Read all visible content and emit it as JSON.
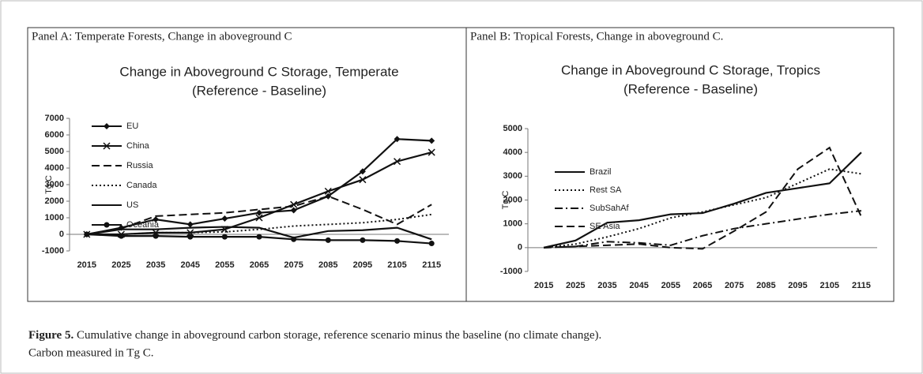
{
  "panels": [
    "Panel A: Temperate Forests, Change in aboveground C",
    "Panel B: Tropical Forests, Change in aboveground C."
  ],
  "caption": {
    "label": "Figure 5.",
    "text": "Cumulative change in aboveground carbon storage, reference scenario minus the baseline (no climate change). Carbon measured in Tg C."
  },
  "chart_data": [
    {
      "type": "line",
      "title": "Change in Aboveground C Storage, Temperate",
      "subtitle": "(Reference - Baseline)",
      "y_label": "Tg C",
      "categories": [
        "2015",
        "2025",
        "2035",
        "2045",
        "2055",
        "2065",
        "2075",
        "2085",
        "2095",
        "2105",
        "2115"
      ],
      "ylim": [
        -1000,
        7000
      ],
      "yticks": [
        -1000,
        0,
        1000,
        2000,
        3000,
        4000,
        5000,
        6000,
        7000
      ],
      "series": [
        {
          "name": "EU",
          "color": "#111111",
          "style": "solid",
          "marker": "diamond",
          "values": [
            0,
            400,
            900,
            600,
            950,
            1300,
            1450,
            2300,
            3800,
            5750,
            5650
          ]
        },
        {
          "name": "China",
          "color": "#111111",
          "style": "solid",
          "marker": "x",
          "values": [
            0,
            0,
            100,
            100,
            300,
            1000,
            1800,
            2600,
            3300,
            4400,
            4950
          ]
        },
        {
          "name": "Russia",
          "color": "#111111",
          "style": "dashed",
          "marker": "none",
          "values": [
            0,
            350,
            1100,
            1200,
            1300,
            1500,
            1700,
            2300,
            1500,
            600,
            1800
          ]
        },
        {
          "name": "Canada",
          "color": "#111111",
          "style": "dotted",
          "marker": "none",
          "values": [
            0,
            0,
            100,
            100,
            150,
            300,
            500,
            600,
            700,
            900,
            1200
          ]
        },
        {
          "name": "US",
          "color": "#111111",
          "style": "solid",
          "marker": "none",
          "values": [
            0,
            300,
            300,
            400,
            450,
            400,
            -200,
            200,
            250,
            400,
            -300
          ]
        },
        {
          "name": "Oceania",
          "color": "#111111",
          "style": "solid",
          "marker": "circle",
          "values": [
            0,
            -100,
            -100,
            -150,
            -150,
            -150,
            -300,
            -350,
            -350,
            -400,
            -550
          ]
        }
      ]
    },
    {
      "type": "line",
      "title": "Change in Aboveground C Storage, Tropics",
      "subtitle": "(Reference - Baseline)",
      "y_label": "Tg C",
      "categories": [
        "2015",
        "2025",
        "2035",
        "2045",
        "2055",
        "2065",
        "2075",
        "2085",
        "2095",
        "2105",
        "2115"
      ],
      "ylim": [
        -1000,
        5000
      ],
      "yticks": [
        -1000,
        0,
        1000,
        2000,
        3000,
        4000,
        5000
      ],
      "series": [
        {
          "name": "Brazil",
          "color": "#111111",
          "style": "solid",
          "marker": "none",
          "values": [
            0,
            300,
            1050,
            1150,
            1400,
            1450,
            1850,
            2300,
            2500,
            2700,
            4000
          ]
        },
        {
          "name": "Rest SA",
          "color": "#111111",
          "style": "dotted",
          "marker": "none",
          "values": [
            0,
            150,
            450,
            800,
            1250,
            1500,
            1800,
            2100,
            2700,
            3300,
            3100
          ]
        },
        {
          "name": "SubSahAf",
          "color": "#111111",
          "style": "dashdot",
          "marker": "none",
          "values": [
            0,
            50,
            250,
            200,
            100,
            500,
            800,
            1000,
            1200,
            1400,
            1550
          ]
        },
        {
          "name": "SE Asia",
          "color": "#111111",
          "style": "dashed",
          "marker": "none",
          "values": [
            0,
            50,
            100,
            150,
            0,
            -50,
            700,
            1500,
            3300,
            4200,
            1300
          ]
        }
      ]
    }
  ]
}
